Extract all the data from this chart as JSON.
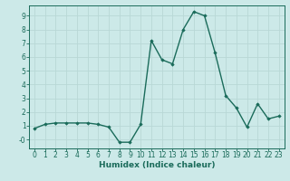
{
  "x": [
    0,
    1,
    2,
    3,
    4,
    5,
    6,
    7,
    8,
    9,
    10,
    11,
    12,
    13,
    14,
    15,
    16,
    17,
    18,
    19,
    20,
    21,
    22,
    23
  ],
  "y": [
    0.8,
    1.1,
    1.2,
    1.2,
    1.2,
    1.2,
    1.1,
    0.9,
    -0.2,
    -0.2,
    1.1,
    7.2,
    5.8,
    5.5,
    8.0,
    9.3,
    9.0,
    6.3,
    3.2,
    2.3,
    0.9,
    2.6,
    1.5,
    1.7
  ],
  "line_color": "#1a6b5a",
  "marker": "D",
  "markersize": 1.8,
  "linewidth": 1.0,
  "xlabel": "Humidex (Indice chaleur)",
  "xlabel_fontsize": 6.5,
  "ytick_labels": [
    "-0",
    "1",
    "2",
    "3",
    "4",
    "5",
    "6",
    "7",
    "8",
    "9"
  ],
  "ytick_vals": [
    0,
    1,
    2,
    3,
    4,
    5,
    6,
    7,
    8,
    9
  ],
  "xtick_labels": [
    "0",
    "1",
    "2",
    "3",
    "4",
    "5",
    "6",
    "7",
    "8",
    "9",
    "10",
    "11",
    "12",
    "13",
    "14",
    "15",
    "16",
    "17",
    "18",
    "19",
    "20",
    "21",
    "22",
    "23"
  ],
  "ylim": [
    -0.65,
    9.75
  ],
  "xlim": [
    -0.5,
    23.5
  ],
  "bg_color": "#cce9e8",
  "grid_color": "#b8d8d6",
  "tick_fontsize": 5.5
}
